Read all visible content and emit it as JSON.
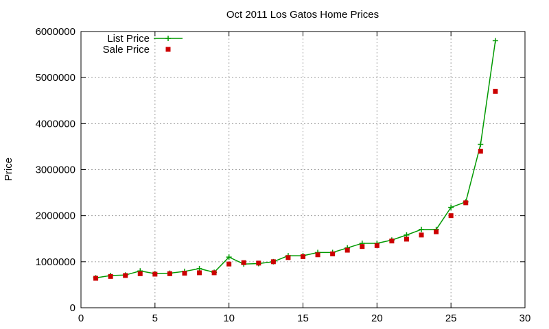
{
  "chart_data": {
    "type": "line",
    "title": "Oct 2011 Los Gatos Home Prices",
    "xlabel": "",
    "ylabel": "Price",
    "xlim": [
      0,
      30
    ],
    "ylim": [
      0,
      6000000
    ],
    "xticks": [
      0,
      5,
      10,
      15,
      20,
      25,
      30
    ],
    "yticks": [
      0,
      1000000,
      2000000,
      3000000,
      4000000,
      5000000,
      6000000
    ],
    "grid": true,
    "legend_position": "top-left",
    "series": [
      {
        "name": "List Price",
        "style": "line-plus",
        "color": "#009900",
        "x": [
          1,
          2,
          3,
          4,
          5,
          6,
          7,
          8,
          9,
          10,
          11,
          12,
          13,
          14,
          15,
          16,
          17,
          18,
          19,
          20,
          21,
          22,
          23,
          24,
          25,
          26,
          27,
          28
        ],
        "values": [
          650000,
          700000,
          710000,
          800000,
          740000,
          750000,
          790000,
          850000,
          770000,
          1100000,
          950000,
          960000,
          1000000,
          1130000,
          1130000,
          1200000,
          1200000,
          1300000,
          1400000,
          1400000,
          1470000,
          1580000,
          1700000,
          1700000,
          2180000,
          2300000,
          3550000,
          5800000
        ]
      },
      {
        "name": "Sale Price",
        "style": "square-points",
        "color": "#cc0000",
        "x": [
          1,
          2,
          3,
          4,
          5,
          6,
          7,
          8,
          9,
          10,
          11,
          12,
          13,
          14,
          15,
          16,
          17,
          18,
          19,
          20,
          21,
          22,
          23,
          24,
          25,
          26,
          27,
          28
        ],
        "values": [
          640000,
          680000,
          700000,
          740000,
          730000,
          740000,
          750000,
          760000,
          760000,
          950000,
          980000,
          970000,
          1000000,
          1090000,
          1110000,
          1150000,
          1170000,
          1250000,
          1330000,
          1350000,
          1450000,
          1490000,
          1580000,
          1650000,
          2000000,
          2280000,
          3400000,
          4700000
        ]
      }
    ]
  }
}
